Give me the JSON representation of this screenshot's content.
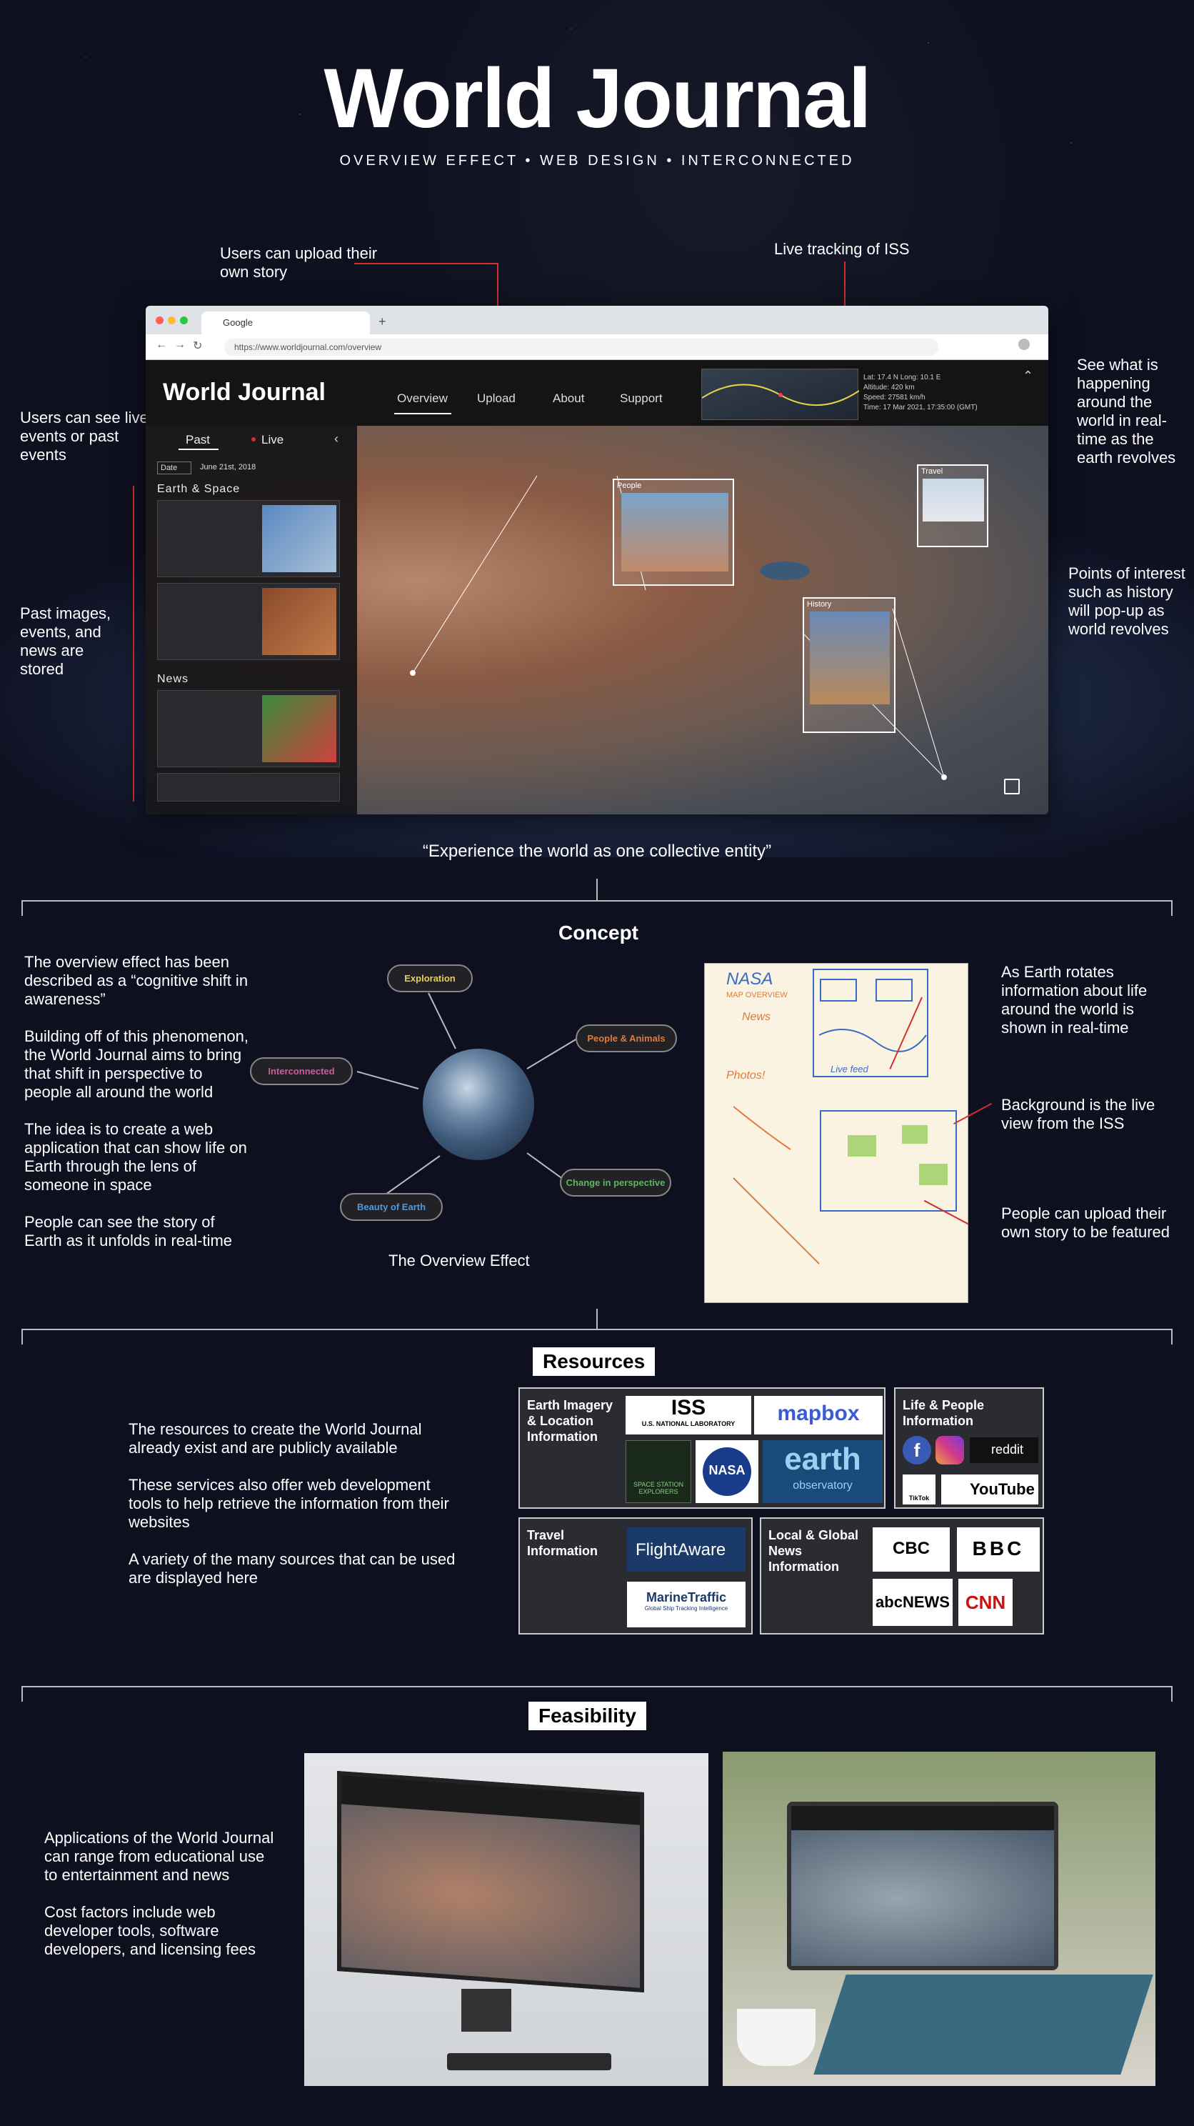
{
  "header": {
    "title": "World Journal",
    "subtitle": "OVERVIEW EFFECT • WEB DESIGN • INTERCONNECTED"
  },
  "callouts": {
    "upload": "Users can upload their own story",
    "iss": "Live tracking of ISS",
    "live_past": "Users can see live events or past events",
    "see_what": "See what is happening around the world in real-time as the earth revolves",
    "past_stored": "Past images, events, and news are stored",
    "points": "Points of interest such as history will pop-up as world revolves"
  },
  "browser": {
    "tab_title": "Google",
    "url": "https://www.worldjournal.com/overview",
    "logo": "World Journal",
    "nav": [
      "Overview",
      "Upload",
      "About",
      "Support"
    ],
    "iss_info": [
      "Lat: 17.4 N  Long: 10.1 E",
      "Altitude: 420 km",
      "Speed: 27581 km/h",
      "Time: 17 Mar 2021, 17:35:00 (GMT)"
    ],
    "panel": {
      "tab_past": "Past",
      "tab_live": "Live",
      "date_select": "Date",
      "date": "June 21st, 2018",
      "section1": "Earth & Space",
      "section2": "News"
    },
    "poi": {
      "people": "People",
      "travel": "Travel",
      "history": "History"
    }
  },
  "quote": "“Experience the world as one collective entity”",
  "concept": {
    "heading": "Concept",
    "paragraphs": [
      "The overview effect has been described as a “cognitive shift in awareness”",
      "Building off of this phenomenon, the World Journal aims to bring that shift in perspective to people all around the world",
      "The idea is to create a web application that can show life on Earth through the lens of someone in space",
      "People can see the story of Earth as it unfolds in real-time"
    ],
    "nodes": {
      "exploration": "Exploration",
      "people": "People & Animals",
      "interconnected": "Interconnected",
      "change": "Change in perspective",
      "beauty": "Beauty of Earth"
    },
    "diagram_caption": "The Overview Effect",
    "sketch_notes": {
      "n1": "As Earth rotates information about life around the world is shown in real-time",
      "n2": "Background is the live view from the ISS",
      "n3": "People can upload their own story to be featured"
    },
    "sketch_text": [
      "NASA",
      "MAP OVERVIEW",
      "News",
      "Photos!",
      "Live feed"
    ]
  },
  "resources": {
    "heading": "Resources",
    "paragraphs": [
      "The resources to create the World Journal already exist and are publicly available",
      "These services also offer web development tools to help retrieve the information from their websites",
      "A variety of the many sources that can be used are displayed here"
    ],
    "box_earth": "Earth Imagery & Location Information",
    "box_life": "Life & People Information",
    "box_travel": "Travel Information",
    "box_news": "Local & Global News Information",
    "logos": {
      "iss": "ISS",
      "iss_sub": "U.S. NATIONAL LABORATORY",
      "mapbox": "mapbox",
      "explorers": "SPACE STATION EXPLORERS",
      "nasa": "NASA",
      "earth": "earth",
      "earth_sub": "observatory",
      "reddit": "reddit",
      "youtube": "YouTube",
      "tiktok": "TikTok",
      "flightaware": "FlightAware",
      "marinetraffic": "MarineTraffic",
      "marine_sub": "Global Ship Tracking Intelligence",
      "cbc": "CBC",
      "bbc": "BBC",
      "abc": "abcNEWS",
      "cnn": "CNN"
    }
  },
  "feasibility": {
    "heading": "Feasibility",
    "paragraphs": [
      "Applications of the World Journal can range from educational use to entertainment and news",
      "Cost factors include web developer tools, software developers, and licensing fees"
    ]
  },
  "colors": {
    "accent_red": "#d03030",
    "pill_orange": "#e07a3a",
    "pill_pink": "#d05a9a",
    "pill_green": "#5ab85a",
    "pill_blue": "#4a9ae0",
    "pill_yellow": "#e8d24a"
  }
}
